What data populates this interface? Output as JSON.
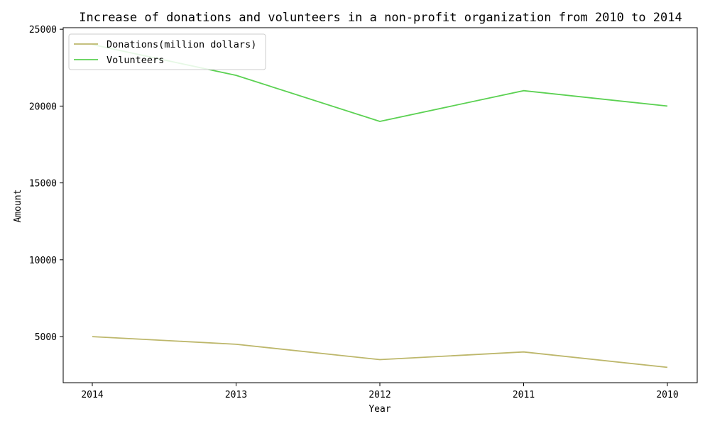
{
  "chart_data": {
    "type": "line",
    "title": "Increase of donations and volunteers in a non-profit organization from 2010 to 2014",
    "xlabel": "Year",
    "ylabel": "Amount",
    "categories": [
      "2014",
      "2013",
      "2012",
      "2011",
      "2010"
    ],
    "series": [
      {
        "name": "Donations(million dollars)",
        "values": [
          5000,
          4500,
          3500,
          4000,
          3000
        ],
        "color": "#bdb76b"
      },
      {
        "name": "Volunteers",
        "values": [
          24000,
          22000,
          19000,
          21000,
          20000
        ],
        "color": "#5bd152"
      }
    ],
    "ylim": [
      2000,
      25100
    ],
    "yticks": [
      5000,
      10000,
      15000,
      20000,
      25000
    ],
    "grid": false,
    "legend": "top-left"
  }
}
